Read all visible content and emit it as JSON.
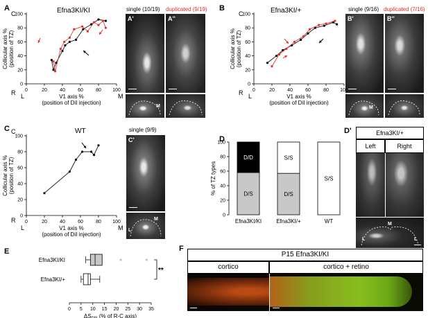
{
  "panels": {
    "A": {
      "letter": "A",
      "title": "Efna3KI/KI",
      "single": "single (10/19)",
      "duplicated": "duplicated (9/19)",
      "img1": "A'",
      "img2": "A''",
      "inset_mark": "M"
    },
    "B": {
      "letter": "B",
      "title": "Efna3KI/+",
      "single": "single (9/16)",
      "duplicated": "duplicated (7/16)",
      "img1": "B'",
      "img2": "B''",
      "inset_mark": "M"
    },
    "C": {
      "letter": "C",
      "title": "WT",
      "single": "single (9/9)",
      "img1": "C'",
      "inset_l": "L",
      "inset_m": "M"
    },
    "D": {
      "letter": "D",
      "ylabel": "% of TZ types",
      "yticks": [
        "0",
        "20",
        "40",
        "60",
        "80",
        "100"
      ],
      "categories": [
        "Efna3KI/KI",
        "Efna3KI/+",
        "WT"
      ],
      "stack_labels": {
        "dd": "D/D",
        "ds": "D/S",
        "ss": "S/S"
      }
    },
    "Dp": {
      "letter": "D'",
      "header": "Efna3KI/+",
      "left": "Left",
      "right": "Right",
      "l1": "L",
      "m": "M",
      "l2": "L"
    },
    "E": {
      "letter": "E",
      "rows": [
        "Efna3KI/KI",
        "Efna3KI/+"
      ],
      "xticks": [
        "0",
        "5",
        "10",
        "15",
        "20",
        "25",
        "30",
        "35"
      ],
      "xlabel": "ΔSₑₓₚ  (% of R-C axis)",
      "sig": "**"
    },
    "F": {
      "letter": "F",
      "header": "P15 Efna3KI/KI",
      "left": "cortico",
      "right": "cortico + retino"
    }
  },
  "axis": {
    "ylab1": "Collicular axis %",
    "ylab2": "(position of TZ)",
    "xlab1": "V1 axis %",
    "xlab2": "(position of DiI injection)",
    "yticks": [
      "0",
      "20",
      "40",
      "60",
      "80",
      "100"
    ],
    "xticks": [
      "0",
      "20",
      "40",
      "60",
      "80",
      "100"
    ],
    "y_top": "C",
    "y_bot": "R",
    "x_left": "L",
    "x_right": "M"
  },
  "chart_data": [
    {
      "type": "scatter",
      "panel": "A",
      "xlabel": "V1 axis %",
      "ylabel": "Collicular axis %",
      "xlim": [
        0,
        100
      ],
      "ylim": [
        0,
        100
      ],
      "series": [
        {
          "color": "#000000",
          "points": [
            [
              28,
              34
            ],
            [
              30,
              20
            ],
            [
              33,
              30
            ],
            [
              40,
              47
            ],
            [
              43,
              55
            ],
            [
              48,
              60
            ],
            [
              55,
              63
            ],
            [
              63,
              78
            ],
            [
              72,
              85
            ],
            [
              80,
              92
            ],
            [
              88,
              90
            ]
          ]
        },
        {
          "color": "#e0302b",
          "points": [
            [
              30,
              32
            ],
            [
              32,
              18
            ],
            [
              38,
              50
            ],
            [
              42,
              60
            ],
            [
              48,
              66
            ],
            [
              53,
              78
            ],
            [
              62,
              82
            ],
            [
              68,
              75
            ],
            [
              75,
              88
            ],
            [
              80,
              84
            ],
            [
              85,
              90
            ],
            [
              88,
              80
            ]
          ]
        }
      ]
    },
    {
      "type": "scatter",
      "panel": "B",
      "xlabel": "V1 axis %",
      "ylabel": "Collicular axis %",
      "xlim": [
        0,
        100
      ],
      "ylim": [
        0,
        100
      ],
      "series": [
        {
          "color": "#000000",
          "points": [
            [
              15,
              30
            ],
            [
              25,
              40
            ],
            [
              32,
              48
            ],
            [
              42,
              55
            ],
            [
              52,
              63
            ],
            [
              60,
              72
            ],
            [
              68,
              80
            ],
            [
              78,
              83
            ],
            [
              88,
              88
            ],
            [
              92,
              85
            ]
          ]
        },
        {
          "color": "#e0302b",
          "points": [
            [
              20,
              25
            ],
            [
              28,
              42
            ],
            [
              36,
              50
            ],
            [
              45,
              60
            ],
            [
              55,
              68
            ],
            [
              62,
              78
            ],
            [
              72,
              84
            ],
            [
              80,
              86
            ],
            [
              90,
              90
            ]
          ]
        }
      ]
    },
    {
      "type": "scatter",
      "panel": "C",
      "xlabel": "V1 axis %",
      "ylabel": "Collicular axis %",
      "xlim": [
        0,
        100
      ],
      "ylim": [
        0,
        100
      ],
      "series": [
        {
          "color": "#000000",
          "points": [
            [
              20,
              28
            ],
            [
              48,
              55
            ],
            [
              55,
              70
            ],
            [
              62,
              80
            ],
            [
              72,
              80
            ],
            [
              75,
              76
            ],
            [
              80,
              88
            ]
          ]
        }
      ]
    },
    {
      "type": "bar",
      "panel": "D",
      "categories": [
        "Efna3KI/KI",
        "Efna3KI/+",
        "WT"
      ],
      "ylim": [
        0,
        100
      ],
      "series": [
        {
          "name": "D/S",
          "values": [
            58,
            57,
            0
          ]
        },
        {
          "name": "D/D",
          "values": [
            42,
            0,
            0
          ]
        },
        {
          "name": "S/S",
          "values": [
            0,
            43,
            100
          ]
        }
      ]
    },
    {
      "type": "box",
      "panel": "E",
      "categories": [
        "Efna3KI/KI",
        "Efna3KI/+"
      ],
      "xlim": [
        0,
        35
      ],
      "boxes": [
        {
          "min": 7,
          "q1": 9,
          "median": 11,
          "q3": 14,
          "max": 14,
          "outliers": [
            22,
            33
          ]
        },
        {
          "min": 5,
          "q1": 6,
          "median": 8,
          "q3": 9,
          "max": 13,
          "outliers": []
        }
      ]
    }
  ]
}
